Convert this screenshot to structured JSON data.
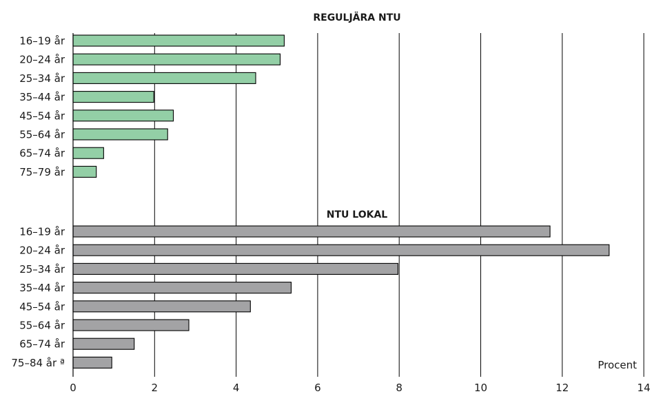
{
  "chart_data": {
    "type": "bar",
    "orientation": "horizontal",
    "unit_label": "Procent",
    "xlim": [
      0,
      14
    ],
    "xticks": [
      "0",
      "2",
      "4",
      "6",
      "8",
      "10",
      "12",
      "14"
    ],
    "grid": "vertical",
    "panels": [
      {
        "title": "REGULJÄRA NTU",
        "color": "#93cfa6",
        "categories": [
          "16–19 år",
          "20–24 år",
          "25–34 år",
          "35–44 år",
          "45–54 år",
          "55–64 år",
          "65–74 år",
          "75–79 år"
        ],
        "values": [
          5.18,
          5.08,
          4.48,
          1.98,
          2.46,
          2.32,
          0.75,
          0.57
        ]
      },
      {
        "title": "NTU LOKAL",
        "color": "#a3a3a5",
        "categories": [
          "16–19 år",
          "20–24 år",
          "25–34 år",
          "35–44 år",
          "45–54 år",
          "55–64 år",
          "65–74 år",
          "75–84 år ª"
        ],
        "values": [
          11.7,
          13.15,
          7.97,
          5.35,
          4.35,
          2.84,
          1.5,
          0.95
        ]
      }
    ]
  }
}
